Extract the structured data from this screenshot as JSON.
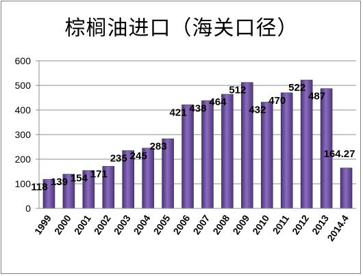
{
  "chart_data": {
    "type": "bar",
    "title": "棕榈油进口（海关口径）",
    "categories": [
      "1999",
      "2000",
      "2001",
      "2002",
      "2003",
      "2004",
      "2005",
      "2006",
      "2007",
      "2008",
      "2009",
      "2010",
      "2011",
      "2012",
      "2013",
      "2014.4"
    ],
    "values": [
      118,
      139,
      154,
      171,
      235,
      245,
      283,
      421,
      438,
      464,
      512,
      432,
      470,
      522,
      487,
      164.27
    ],
    "data_labels": [
      "118",
      "139",
      "154",
      "171",
      "235",
      "245",
      "283",
      "421",
      "438",
      "464",
      "512",
      "432",
      "470",
      "522",
      "487",
      "164.27"
    ],
    "yticks": [
      "0",
      "100",
      "200",
      "300",
      "400",
      "500",
      "600"
    ],
    "ylim": [
      0,
      600
    ],
    "grid": true,
    "bar_color": "#6b4e9a",
    "legend": "none"
  }
}
